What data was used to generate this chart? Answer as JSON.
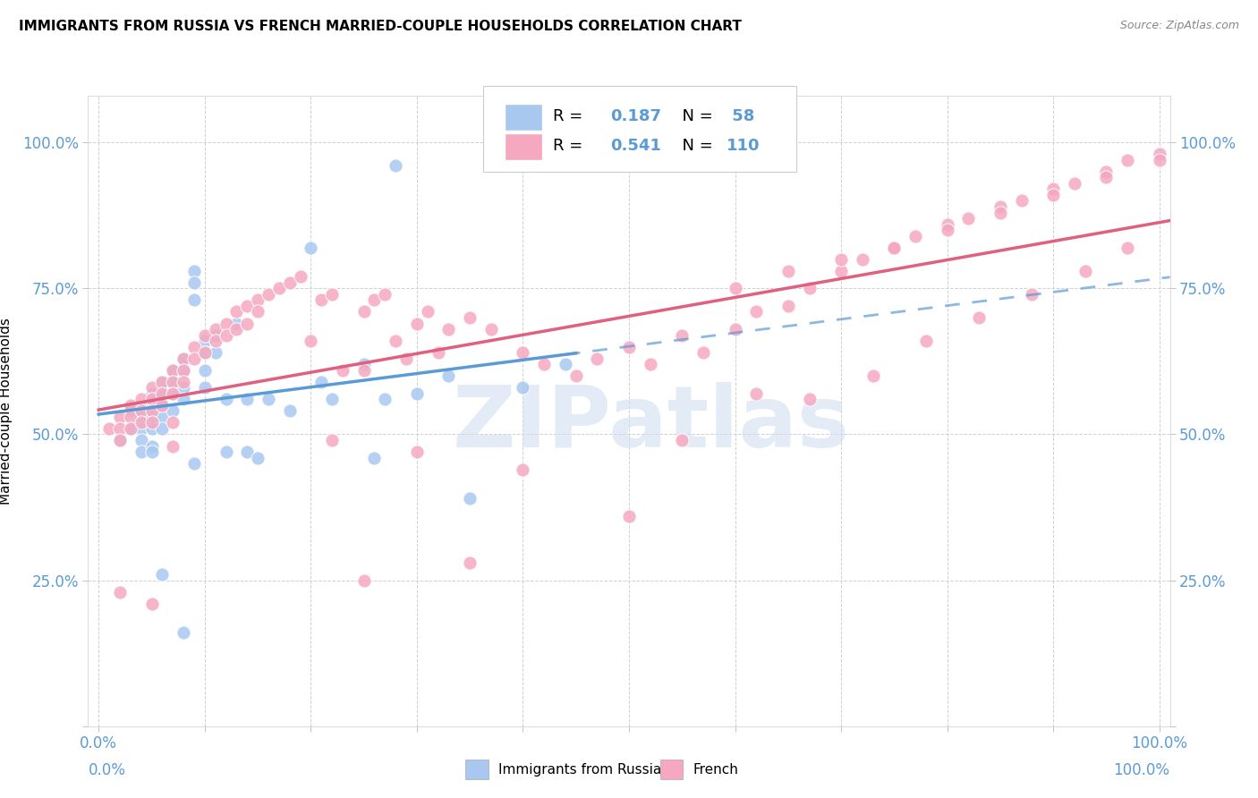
{
  "title": "IMMIGRANTS FROM RUSSIA VS FRENCH MARRIED-COUPLE HOUSEHOLDS CORRELATION CHART",
  "source": "Source: ZipAtlas.com",
  "ylabel": "Married-couple Households",
  "blue_color": "#a8c8f0",
  "pink_color": "#f5a8c0",
  "blue_line_color": "#5b9bd5",
  "pink_line_color": "#e06080",
  "axis_text_color": "#5b9bd5",
  "pink_text_color": "#e06080",
  "watermark_color": "#d0dff0",
  "watermark_text": "ZIPatlas",
  "legend_text_color": "#5b9bd5",
  "blue_r": "0.187",
  "blue_n": "58",
  "pink_r": "0.541",
  "pink_n": "110",
  "blue_x": [
    0.02,
    0.03,
    0.03,
    0.04,
    0.04,
    0.04,
    0.04,
    0.05,
    0.05,
    0.05,
    0.05,
    0.05,
    0.06,
    0.06,
    0.06,
    0.06,
    0.06,
    0.07,
    0.07,
    0.07,
    0.07,
    0.08,
    0.08,
    0.08,
    0.08,
    0.09,
    0.09,
    0.09,
    0.1,
    0.1,
    0.1,
    0.1,
    0.11,
    0.11,
    0.12,
    0.12,
    0.13,
    0.14,
    0.14,
    0.15,
    0.16,
    0.18,
    0.2,
    0.21,
    0.22,
    0.25,
    0.26,
    0.27,
    0.3,
    0.33,
    0.35,
    0.4,
    0.44,
    0.06,
    0.08,
    0.09,
    0.28,
    0.05
  ],
  "blue_y": [
    0.49,
    0.54,
    0.51,
    0.53,
    0.51,
    0.49,
    0.47,
    0.57,
    0.55,
    0.53,
    0.51,
    0.48,
    0.59,
    0.57,
    0.55,
    0.53,
    0.51,
    0.61,
    0.59,
    0.57,
    0.54,
    0.63,
    0.61,
    0.58,
    0.56,
    0.78,
    0.76,
    0.73,
    0.66,
    0.64,
    0.61,
    0.58,
    0.67,
    0.64,
    0.56,
    0.47,
    0.69,
    0.47,
    0.56,
    0.46,
    0.56,
    0.54,
    0.82,
    0.59,
    0.56,
    0.62,
    0.46,
    0.56,
    0.57,
    0.6,
    0.39,
    0.58,
    0.62,
    0.26,
    0.16,
    0.45,
    0.96,
    0.47
  ],
  "pink_x": [
    0.01,
    0.02,
    0.02,
    0.02,
    0.03,
    0.03,
    0.03,
    0.04,
    0.04,
    0.04,
    0.05,
    0.05,
    0.05,
    0.05,
    0.06,
    0.06,
    0.06,
    0.07,
    0.07,
    0.07,
    0.08,
    0.08,
    0.08,
    0.09,
    0.09,
    0.1,
    0.1,
    0.11,
    0.11,
    0.12,
    0.12,
    0.13,
    0.13,
    0.14,
    0.14,
    0.15,
    0.15,
    0.16,
    0.17,
    0.18,
    0.19,
    0.2,
    0.21,
    0.22,
    0.23,
    0.25,
    0.25,
    0.26,
    0.27,
    0.28,
    0.29,
    0.3,
    0.31,
    0.32,
    0.33,
    0.35,
    0.37,
    0.4,
    0.42,
    0.45,
    0.47,
    0.5,
    0.52,
    0.55,
    0.57,
    0.6,
    0.62,
    0.65,
    0.67,
    0.7,
    0.72,
    0.75,
    0.77,
    0.8,
    0.82,
    0.85,
    0.87,
    0.9,
    0.92,
    0.95,
    0.97,
    1.0,
    0.6,
    0.65,
    0.7,
    0.75,
    0.8,
    0.85,
    0.9,
    0.95,
    1.0,
    0.02,
    0.05,
    0.07,
    0.3,
    0.4,
    0.5,
    0.55,
    0.62,
    0.67,
    0.73,
    0.78,
    0.83,
    0.88,
    0.93,
    0.97,
    0.25,
    0.35,
    0.22,
    0.07
  ],
  "pink_y": [
    0.51,
    0.53,
    0.51,
    0.49,
    0.55,
    0.53,
    0.51,
    0.56,
    0.54,
    0.52,
    0.58,
    0.56,
    0.54,
    0.52,
    0.59,
    0.57,
    0.55,
    0.61,
    0.59,
    0.57,
    0.63,
    0.61,
    0.59,
    0.65,
    0.63,
    0.67,
    0.64,
    0.68,
    0.66,
    0.69,
    0.67,
    0.71,
    0.68,
    0.72,
    0.69,
    0.73,
    0.71,
    0.74,
    0.75,
    0.76,
    0.77,
    0.66,
    0.73,
    0.74,
    0.61,
    0.71,
    0.61,
    0.73,
    0.74,
    0.66,
    0.63,
    0.69,
    0.71,
    0.64,
    0.68,
    0.7,
    0.68,
    0.64,
    0.62,
    0.6,
    0.63,
    0.65,
    0.62,
    0.67,
    0.64,
    0.68,
    0.71,
    0.72,
    0.75,
    0.78,
    0.8,
    0.82,
    0.84,
    0.86,
    0.87,
    0.89,
    0.9,
    0.92,
    0.93,
    0.95,
    0.97,
    0.98,
    0.75,
    0.78,
    0.8,
    0.82,
    0.85,
    0.88,
    0.91,
    0.94,
    0.97,
    0.23,
    0.21,
    0.48,
    0.47,
    0.44,
    0.36,
    0.49,
    0.57,
    0.56,
    0.6,
    0.66,
    0.7,
    0.74,
    0.78,
    0.82,
    0.25,
    0.28,
    0.49,
    0.52
  ]
}
